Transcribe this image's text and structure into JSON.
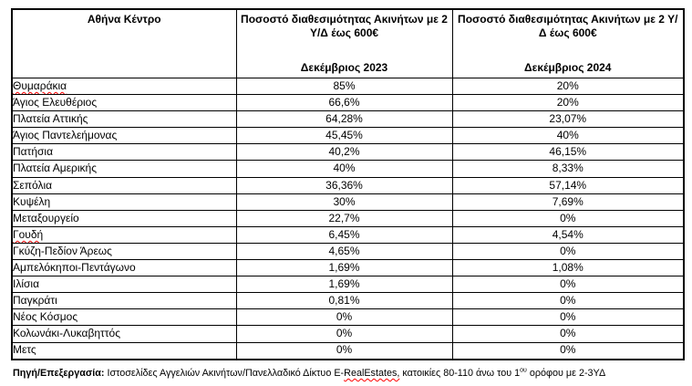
{
  "table": {
    "header": {
      "col1": "Αθήνα Κέντρο",
      "col2_title": "Ποσοστό διαθεσιμότητας Ακινήτων με 2 Υ/Δ έως 600€",
      "col2_period": "Δεκέμβριος 2023",
      "col3_title": "Ποσοστό διαθεσιμότητας Ακινήτων με 2 Υ/Δ έως 600€",
      "col3_period": "Δεκέμβριος 2024"
    },
    "rows": [
      {
        "area": "Θυμαράκια",
        "dec2023": "85%",
        "dec2024": "20%",
        "spellcheck": true
      },
      {
        "area": "Άγιος Ελευθέριος",
        "dec2023": "66,6%",
        "dec2024": "20%",
        "spellcheck": false
      },
      {
        "area": "Πλατεία Αττικής",
        "dec2023": "64,28%",
        "dec2024": "23,07%",
        "spellcheck": false
      },
      {
        "area": "Άγιος Παντελεήμονας",
        "dec2023": "45,45%",
        "dec2024": "40%",
        "spellcheck": false
      },
      {
        "area": "Πατήσια",
        "dec2023": "40,2%",
        "dec2024": "46,15%",
        "spellcheck": false
      },
      {
        "area": "Πλατεία Αμερικής",
        "dec2023": "40%",
        "dec2024": "8,33%",
        "spellcheck": false
      },
      {
        "area": "Σεπόλια",
        "dec2023": "36,36%",
        "dec2024": "57,14%",
        "spellcheck": false
      },
      {
        "area": "Κυψέλη",
        "dec2023": "30%",
        "dec2024": "7,69%",
        "spellcheck": false
      },
      {
        "area": "Μεταξουργείο",
        "dec2023": "22,7%",
        "dec2024": "0%",
        "spellcheck": false
      },
      {
        "area": "Γουδή",
        "dec2023": "6,45%",
        "dec2024": "4,54%",
        "spellcheck": true
      },
      {
        "area": "Γκύζη-Πεδίον Άρεως",
        "dec2023": "4,65%",
        "dec2024": "0%",
        "spellcheck": false
      },
      {
        "area": "Αμπελόκηποι-Πεντάγωνο",
        "dec2023": "1,69%",
        "dec2024": "1,08%",
        "spellcheck": false
      },
      {
        "area": "Ιλίσια",
        "dec2023": "1,69%",
        "dec2024": "0%",
        "spellcheck": false
      },
      {
        "area": "Παγκράτι",
        "dec2023": "0,81%",
        "dec2024": "0%",
        "spellcheck": false
      },
      {
        "area": "Νέος Κόσμος",
        "dec2023": "0%",
        "dec2024": "0%",
        "spellcheck": false
      },
      {
        "area": "Κολωνάκι-Λυκαβηττός",
        "dec2023": "0%",
        "dec2024": "0%",
        "spellcheck": false
      },
      {
        "area": "Μετς",
        "dec2023": "0%",
        "dec2024": "0%",
        "spellcheck": false
      }
    ]
  },
  "footer": {
    "label": "Πηγή/Επεξεργασία:",
    "text_before": " Ιστοσελίδες Αγγελιών Ακινήτων/Πανελλαδικό Δίκτυο E-",
    "misspelled": "RealEstates,",
    "text_mid": " κατοικίες 80-110 άνω του 1",
    "superscript": "ου",
    "text_after": " ορόφου με 2-3ΥΔ"
  },
  "colors": {
    "border": "#000000",
    "text": "#000000",
    "spellcheck_underline": "#ff0000",
    "background": "#ffffff"
  }
}
